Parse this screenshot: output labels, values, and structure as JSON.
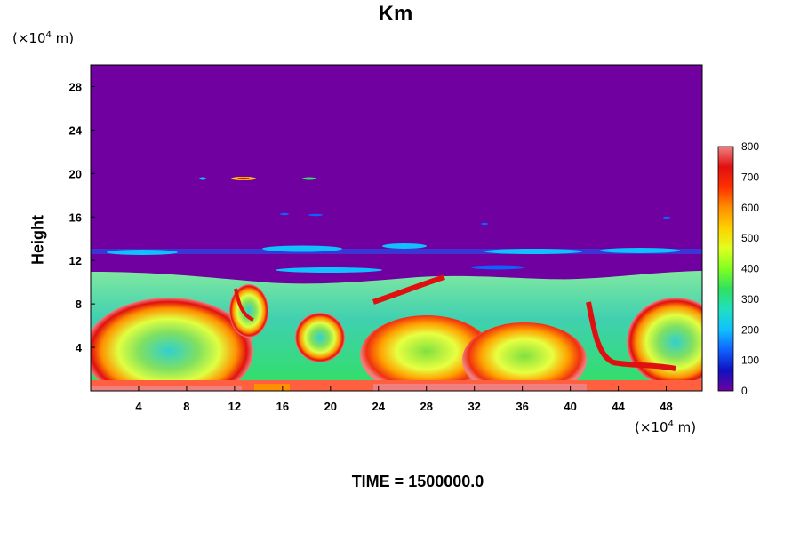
{
  "chart_data": {
    "type": "heatmap",
    "title": "Km",
    "ylabel": "Height",
    "xlabel": "",
    "y_unit": "(×10⁴ m)",
    "x_unit": "(×10⁴ m)",
    "x_unit_base": "(×10",
    "x_unit_exp": "4",
    "x_unit_tail": " m)",
    "x_ticks": [
      "4",
      "8",
      "12",
      "16",
      "20",
      "24",
      "28",
      "32",
      "36",
      "40",
      "44",
      "48"
    ],
    "y_ticks": [
      "4",
      "8",
      "12",
      "16",
      "20",
      "24",
      "28"
    ],
    "xlim": [
      0,
      51
    ],
    "ylim": [
      0,
      30
    ],
    "colorbar": {
      "ticks": [
        "0",
        "100",
        "200",
        "300",
        "400",
        "500",
        "600",
        "700",
        "800"
      ],
      "min": 0,
      "max": 800,
      "colors": [
        "#7000a0",
        "#1010c0",
        "#1060ff",
        "#10c0ff",
        "#20e0c0",
        "#30e060",
        "#80ff20",
        "#e0ff20",
        "#ffd000",
        "#ff9000",
        "#ff3000",
        "#e01010",
        "#f08080"
      ]
    },
    "fields": {
      "upper_background_value": 0,
      "tropopause_height": 11,
      "boundary_layer_value": 350,
      "surface_value": 800
    },
    "footer": "TIME = 1500000.0"
  }
}
